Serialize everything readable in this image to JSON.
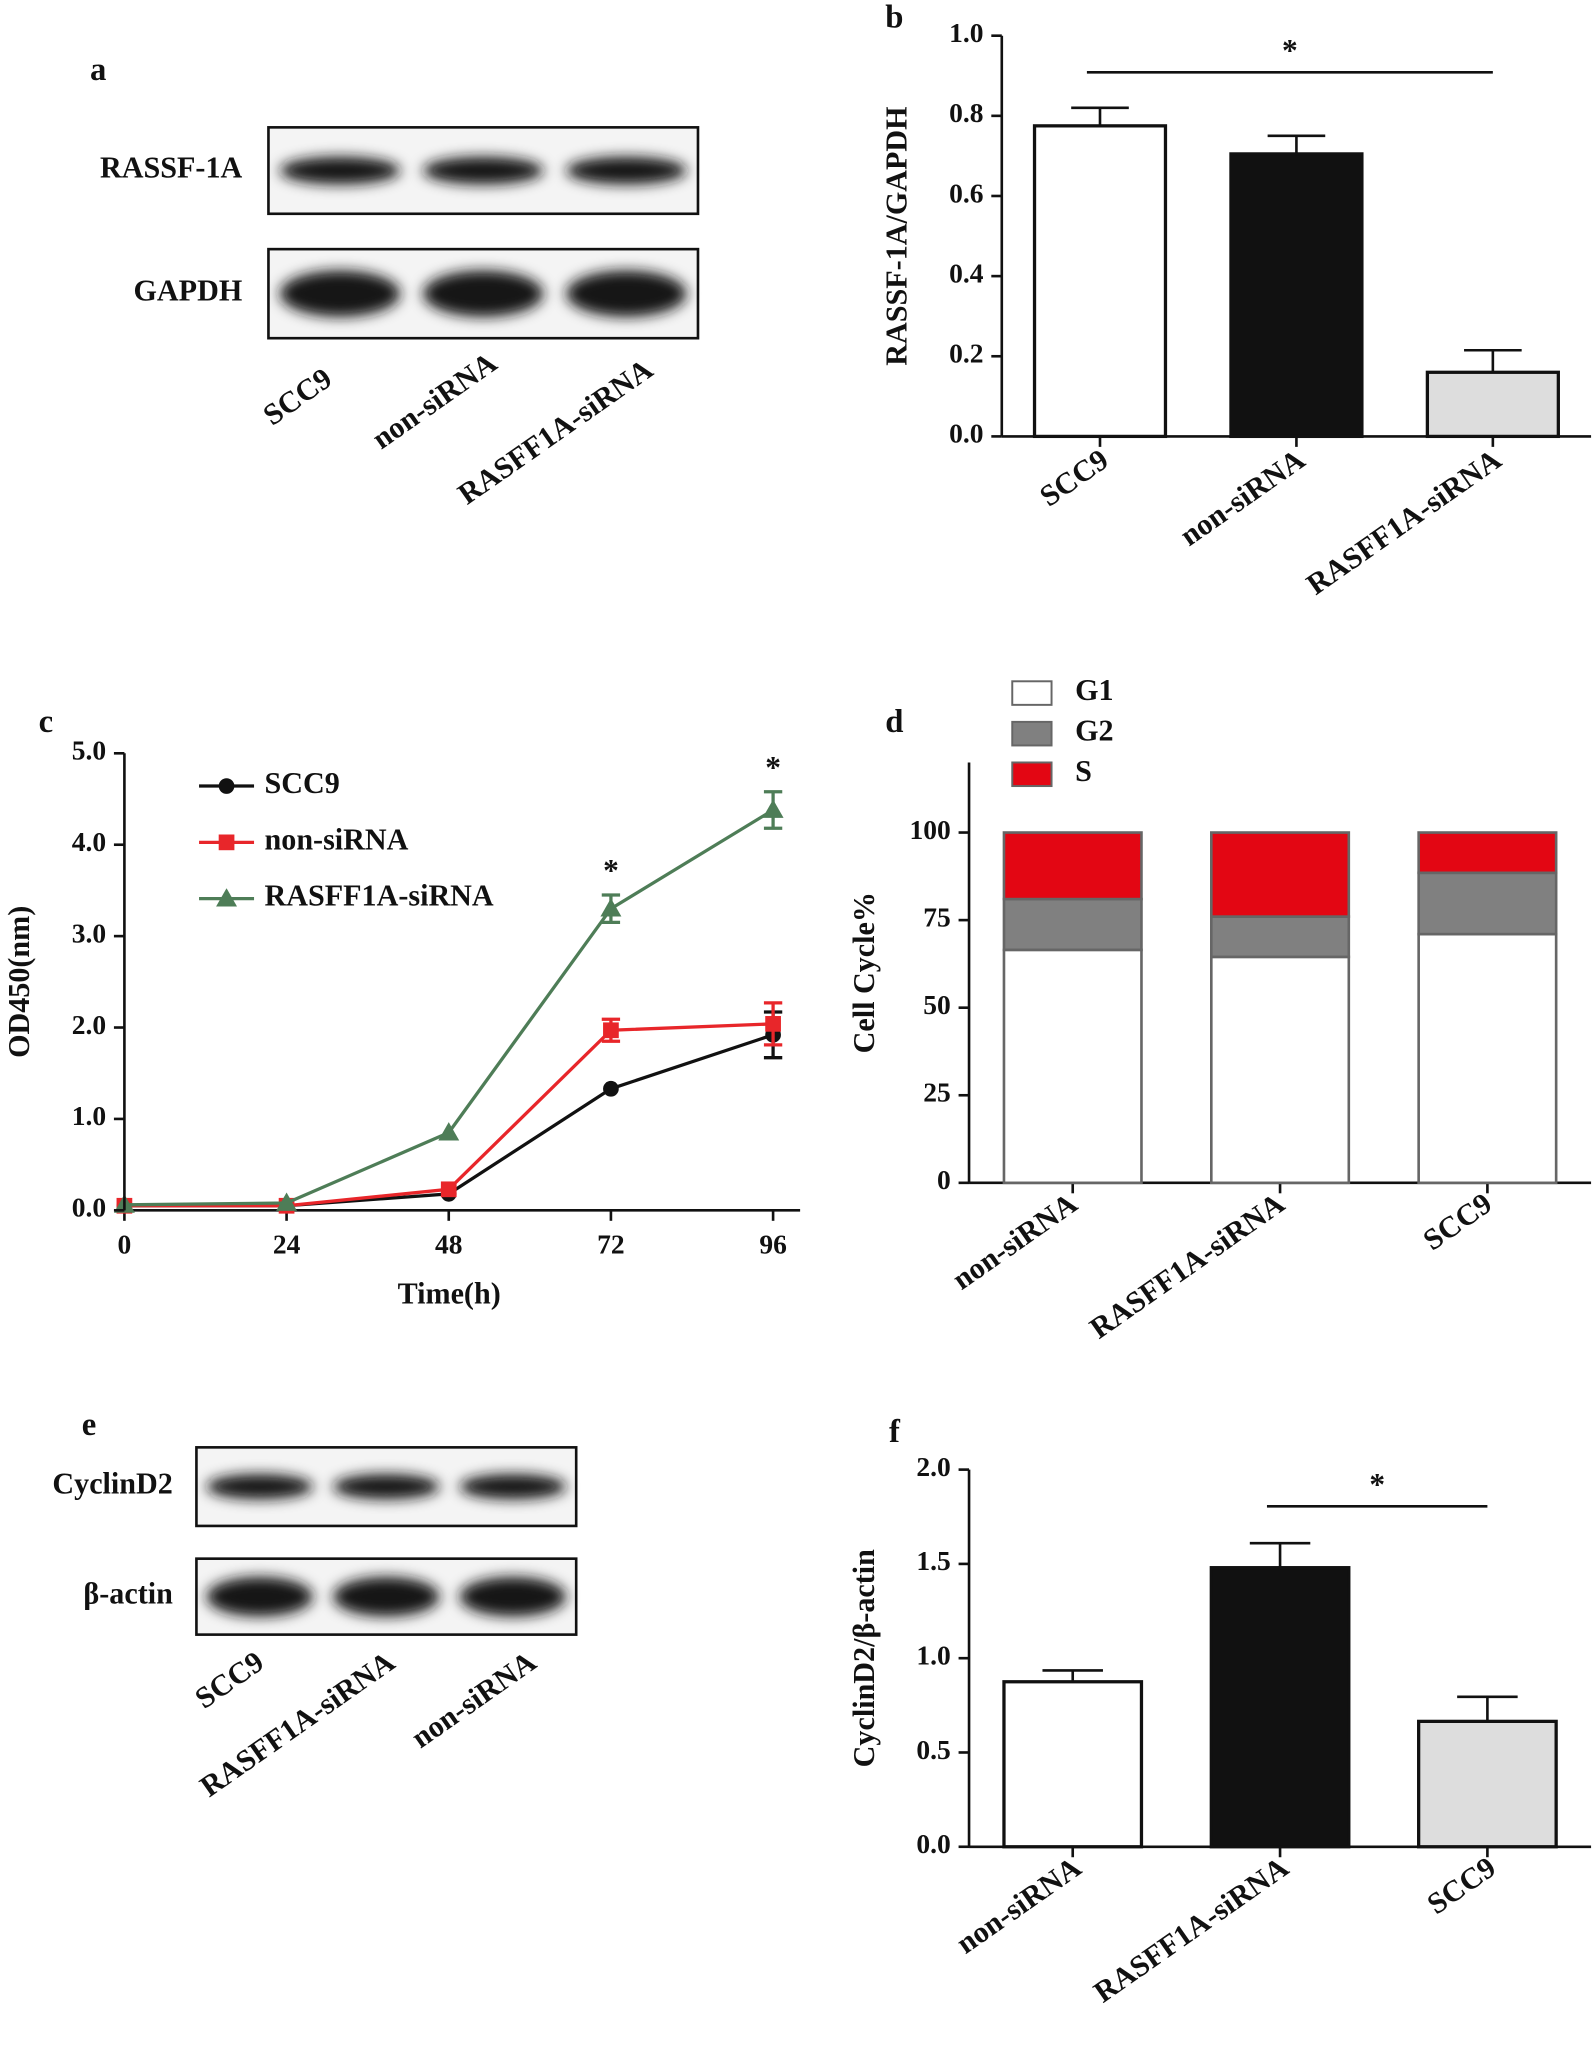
{
  "chart_data": [
    {
      "type": "blot",
      "panel_label": "a",
      "rows": [
        "RASSF-1A",
        "GAPDH"
      ],
      "lanes": [
        "SCC9",
        "non-siRNA",
        "RASFF1A-siRNA"
      ]
    },
    {
      "type": "bar",
      "panel_label": "b",
      "ylabel": "RASSF-1A/GAPDH",
      "categories": [
        "SCC9",
        "non-siRNA",
        "RASFF1A-siRNA"
      ],
      "values": [
        0.775,
        0.705,
        0.16
      ],
      "errors": [
        0.045,
        0.045,
        0.055
      ],
      "colors": [
        "#ffffff",
        "#111111",
        "#dddddd"
      ],
      "ylim": [
        0,
        1.0
      ],
      "yticks": [
        {
          "value": 0,
          "label": "0.0"
        },
        {
          "value": 0.2,
          "label": "0.2"
        },
        {
          "value": 0.4,
          "label": "0.4"
        },
        {
          "value": 0.6,
          "label": "0.6"
        },
        {
          "value": 0.8,
          "label": "0.8"
        },
        {
          "value": 1.0,
          "label": "1.0"
        }
      ],
      "significance": [
        {
          "label": "*",
          "from": 0,
          "to": 2
        }
      ]
    },
    {
      "type": "line",
      "panel_label": "c",
      "xlabel": "Time(h)",
      "ylabel": "OD450(nm)",
      "x": [
        0,
        24,
        48,
        72,
        96
      ],
      "xlim": [
        0,
        100
      ],
      "xticks": [
        0,
        24,
        48,
        72,
        96
      ],
      "ylim": [
        0,
        5.0
      ],
      "yticks": [
        {
          "value": 0,
          "label": "0.0"
        },
        {
          "value": 1,
          "label": "1.0"
        },
        {
          "value": 2,
          "label": "2.0"
        },
        {
          "value": 3,
          "label": "3.0"
        },
        {
          "value": 4,
          "label": "4.0"
        },
        {
          "value": 5,
          "label": "5.0"
        }
      ],
      "series": [
        {
          "name": "SCC9",
          "color": "#111111",
          "marker": "circle",
          "values": [
            0.05,
            0.05,
            0.18,
            1.33,
            1.92
          ],
          "errors": [
            null,
            null,
            null,
            null,
            0.25
          ]
        },
        {
          "name": "non-siRNA",
          "color": "#e8262a",
          "marker": "square",
          "values": [
            0.05,
            0.05,
            0.23,
            1.97,
            2.04
          ],
          "errors": [
            null,
            null,
            null,
            0.12,
            0.23
          ]
        },
        {
          "name": "RASFF1A-siRNA",
          "color": "#4e7d57",
          "marker": "triangle",
          "values": [
            0.06,
            0.08,
            0.85,
            3.3,
            4.38
          ],
          "errors": [
            null,
            null,
            null,
            0.15,
            0.2
          ]
        }
      ],
      "significance": [
        {
          "label": "*",
          "x": 72
        },
        {
          "label": "*",
          "x": 96
        }
      ]
    },
    {
      "type": "stacked_bar",
      "panel_label": "d",
      "ylabel": "Cell Cycle%",
      "categories": [
        "non-siRNA",
        "RASFF1A-siRNA",
        "SCC9"
      ],
      "series": [
        {
          "name": "G1",
          "color": "#ffffff",
          "values": [
            66.5,
            64.5,
            71
          ]
        },
        {
          "name": "G2",
          "color": "#808080",
          "values": [
            14.5,
            11.5,
            17.5
          ]
        },
        {
          "name": "S",
          "color": "#e30613",
          "values": [
            19,
            24,
            11.5
          ]
        }
      ],
      "ylim": [
        0,
        120
      ],
      "yticks": [
        0,
        25,
        50,
        75,
        100
      ]
    },
    {
      "type": "blot",
      "panel_label": "e",
      "rows": [
        "CyclinD2",
        "β-actin"
      ],
      "lanes": [
        "SCC9",
        "RASFF1A-siRNA",
        "non-siRNA"
      ]
    },
    {
      "type": "bar",
      "panel_label": "f",
      "ylabel": "CyclinD2/β-actin",
      "categories": [
        "non-siRNA",
        "RASFF1A-siRNA",
        "SCC9"
      ],
      "values": [
        0.875,
        1.48,
        0.665
      ],
      "errors": [
        0.06,
        0.13,
        0.13
      ],
      "colors": [
        "#ffffff",
        "#111111",
        "#dddddd"
      ],
      "ylim": [
        0,
        2.0
      ],
      "yticks": [
        {
          "value": 0,
          "label": "0.0"
        },
        {
          "value": 0.5,
          "label": "0.5"
        },
        {
          "value": 1.0,
          "label": "1.0"
        },
        {
          "value": 1.5,
          "label": "1.5"
        },
        {
          "value": 2.0,
          "label": "2.0"
        }
      ],
      "significance": [
        {
          "label": "*",
          "from": 1,
          "to": 2
        }
      ]
    }
  ]
}
